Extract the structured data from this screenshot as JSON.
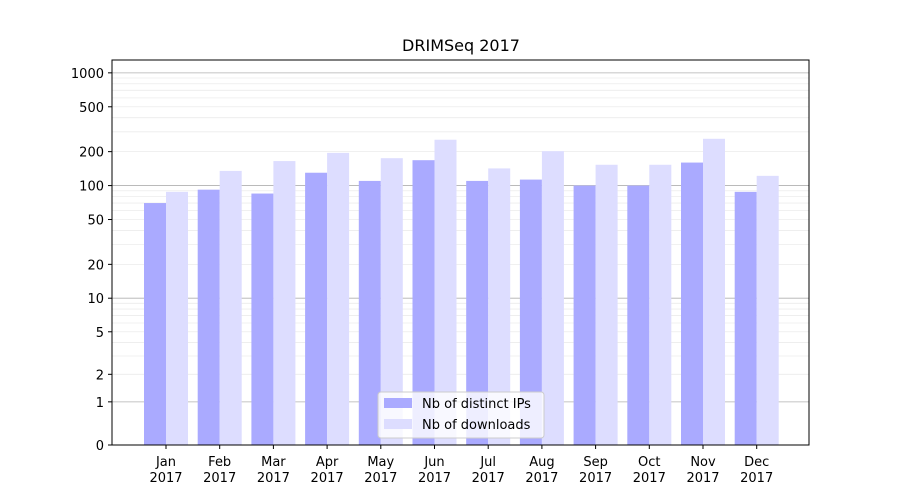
{
  "chart_data": {
    "type": "bar",
    "title": "DRIMSeq 2017",
    "xlabel": "",
    "ylabel": "",
    "yscale": "symlog",
    "ylim": [
      0,
      1300
    ],
    "yticks": [
      {
        "value": 0,
        "label": "0"
      },
      {
        "value": 1,
        "label": "1"
      },
      {
        "value": 2,
        "label": "2"
      },
      {
        "value": 5,
        "label": "5"
      },
      {
        "value": 10,
        "label": "10"
      },
      {
        "value": 20,
        "label": "20"
      },
      {
        "value": 50,
        "label": "50"
      },
      {
        "value": 100,
        "label": "100"
      },
      {
        "value": 200,
        "label": "200"
      },
      {
        "value": 500,
        "label": "500"
      },
      {
        "value": 1000,
        "label": "1000"
      }
    ],
    "grid": "horizontal",
    "categories": [
      {
        "month": "Jan",
        "year": "2017"
      },
      {
        "month": "Feb",
        "year": "2017"
      },
      {
        "month": "Mar",
        "year": "2017"
      },
      {
        "month": "Apr",
        "year": "2017"
      },
      {
        "month": "May",
        "year": "2017"
      },
      {
        "month": "Jun",
        "year": "2017"
      },
      {
        "month": "Jul",
        "year": "2017"
      },
      {
        "month": "Aug",
        "year": "2017"
      },
      {
        "month": "Sep",
        "year": "2017"
      },
      {
        "month": "Oct",
        "year": "2017"
      },
      {
        "month": "Nov",
        "year": "2017"
      },
      {
        "month": "Dec",
        "year": "2017"
      }
    ],
    "series": [
      {
        "name": "Nb of distinct IPs",
        "color": "#aaaaff",
        "values": [
          70,
          92,
          85,
          130,
          110,
          168,
          110,
          113,
          100,
          100,
          160,
          88
        ]
      },
      {
        "name": "Nb of downloads",
        "color": "#ddddff",
        "values": [
          88,
          135,
          165,
          195,
          175,
          255,
          142,
          202,
          153,
          153,
          260,
          122
        ]
      }
    ],
    "legend_position": "bottom-center"
  }
}
